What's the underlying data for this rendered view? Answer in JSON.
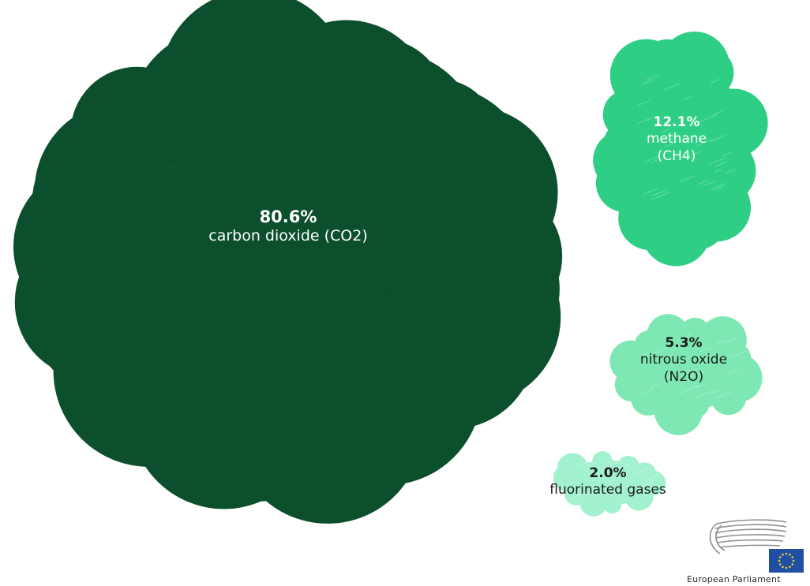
{
  "chart_data": {
    "type": "bubble",
    "unit": "%",
    "items": [
      {
        "value": 80.6,
        "label_value": "80.6%",
        "label": "carbon dioxide (CO2)",
        "label_lines": [
          "carbon dioxide (CO2)"
        ],
        "color": "#0b4f2c",
        "text_color": "#ffffff"
      },
      {
        "value": 12.1,
        "label_value": "12.1%",
        "label": "methane (CH4)",
        "label_lines": [
          "methane",
          "(CH4)"
        ],
        "color": "#2ecf85",
        "text_color": "#ffffff"
      },
      {
        "value": 5.3,
        "label_value": "5.3%",
        "label": "nitrous oxide (N2O)",
        "label_lines": [
          "nitrous oxide",
          "(N2O)"
        ],
        "color": "#7ee8b4",
        "text_color": "#1a1a1a"
      },
      {
        "value": 2.0,
        "label_value": "2.0%",
        "label": "fluorinated gases",
        "label_lines": [
          "fluorinated gases"
        ],
        "color": "#a3f2cf",
        "text_color": "#1a1a1a"
      }
    ]
  },
  "logo": {
    "caption": "European Parliament",
    "flag_color": "#1f4fa3",
    "star_color": "#f5cf2a"
  }
}
